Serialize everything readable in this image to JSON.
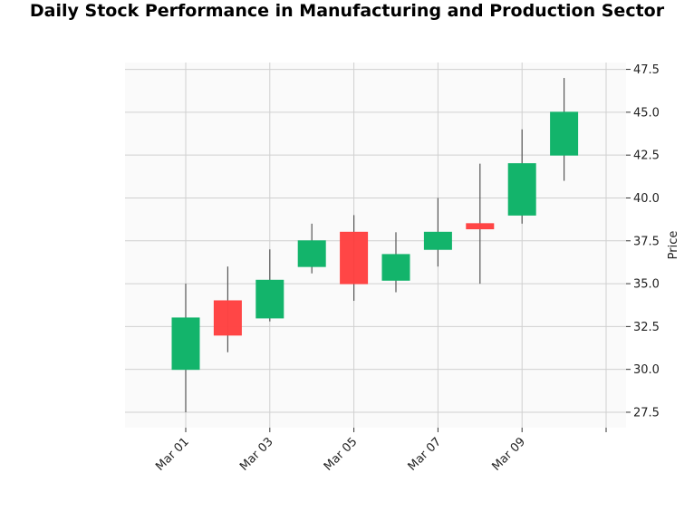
{
  "chart_data": {
    "type": "candlestick",
    "title": "Daily Stock Performance in Manufacturing and Production Sector",
    "ylabel": "Price",
    "xlabel": "",
    "ylim": [
      26.6,
      47.9
    ],
    "grid": true,
    "y_axis_side": "right",
    "colors": {
      "up": "#13b46b",
      "down": "#ff4242",
      "wick": "#555555",
      "grid": "#d0d0d0",
      "plot_bg": "#fafafa"
    },
    "x_ticks": [
      "Mar 01",
      "Mar 03",
      "Mar 05",
      "Mar 07",
      "Mar 09",
      ""
    ],
    "y_ticks": [
      "27.5",
      "30.0",
      "32.5",
      "35.0",
      "37.5",
      "40.0",
      "42.5",
      "45.0",
      "47.5"
    ],
    "candles": [
      {
        "date": "2024-03-01",
        "open": 30.0,
        "high": 35.0,
        "low": 27.5,
        "close": 33.0
      },
      {
        "date": "2024-03-02",
        "open": 34.0,
        "high": 36.0,
        "low": 31.0,
        "close": 32.0
      },
      {
        "date": "2024-03-03",
        "open": 33.0,
        "high": 37.0,
        "low": 32.8,
        "close": 35.2
      },
      {
        "date": "2024-03-04",
        "open": 36.0,
        "high": 38.5,
        "low": 35.6,
        "close": 37.5
      },
      {
        "date": "2024-03-05",
        "open": 38.0,
        "high": 39.0,
        "low": 34.0,
        "close": 35.0
      },
      {
        "date": "2024-03-06",
        "open": 35.2,
        "high": 38.0,
        "low": 34.5,
        "close": 36.7
      },
      {
        "date": "2024-03-07",
        "open": 37.0,
        "high": 40.0,
        "low": 36.0,
        "close": 38.0
      },
      {
        "date": "2024-03-08",
        "open": 38.5,
        "high": 42.0,
        "low": 35.0,
        "close": 38.2
      },
      {
        "date": "2024-03-09",
        "open": 39.0,
        "high": 44.0,
        "low": 38.5,
        "close": 42.0
      },
      {
        "date": "2024-03-10",
        "open": 42.5,
        "high": 47.0,
        "low": 41.0,
        "close": 45.0
      }
    ]
  }
}
